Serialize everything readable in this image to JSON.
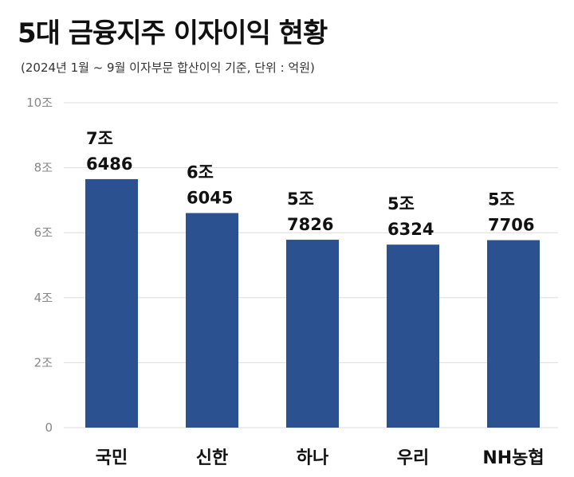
{
  "chart_data": {
    "type": "bar",
    "title": "5대 금융지주 이자이익 현황",
    "subtitle": "(2024년 1월 ~ 9월 이자부문 합산이익 기준, 단위 : 억원)",
    "categories": [
      "국민",
      "신한",
      "하나",
      "우리",
      "NH농협"
    ],
    "values": [
      76486,
      66045,
      57826,
      56324,
      57706
    ],
    "data_labels": [
      [
        "7조",
        "6486"
      ],
      [
        "6조",
        "6045"
      ],
      [
        "5조",
        "7826"
      ],
      [
        "5조",
        "6324"
      ],
      [
        "5조",
        "7706"
      ]
    ],
    "yticks": [
      0,
      20000,
      40000,
      60000,
      80000,
      100000
    ],
    "ytick_labels": [
      "0",
      "2조",
      "4조",
      "6조",
      "8조",
      "10조"
    ],
    "ylim": [
      0,
      100000
    ],
    "grid": true,
    "bar_color": "#2c5190",
    "grid_color": "#dddddd",
    "xlabel": "",
    "ylabel": ""
  }
}
